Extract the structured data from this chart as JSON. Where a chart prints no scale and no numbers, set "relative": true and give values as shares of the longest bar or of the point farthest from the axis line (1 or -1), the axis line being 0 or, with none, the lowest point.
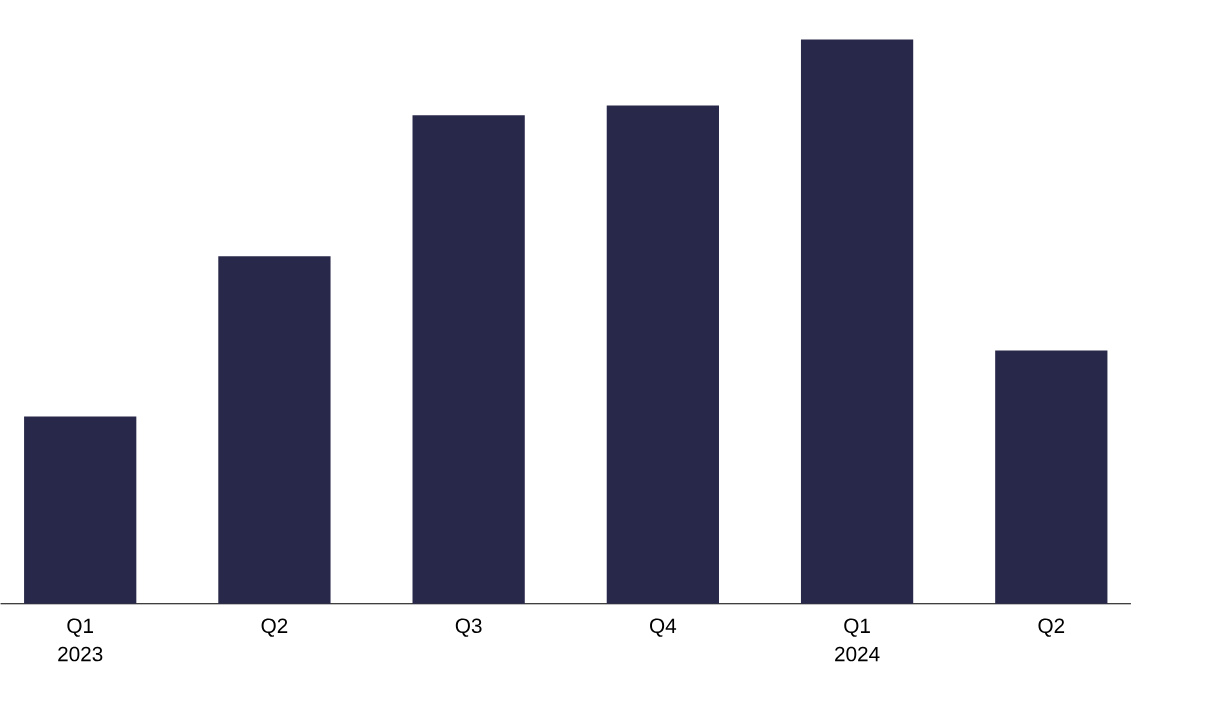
{
  "chart_data": {
    "type": "bar",
    "relative": true,
    "categories": [
      "Q1 2023",
      "Q2",
      "Q3",
      "Q4",
      "Q1 2024",
      "Q2"
    ],
    "values": [
      0.332,
      0.616,
      0.866,
      0.883,
      1,
      0.449
    ],
    "color": "#28284a"
  }
}
